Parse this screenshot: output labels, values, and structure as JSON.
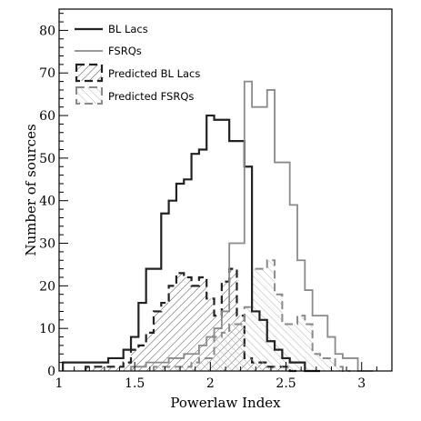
{
  "chart_data": {
    "type": "histogram",
    "title": "",
    "xlabel": "Powerlaw Index",
    "ylabel": "Number of sources",
    "xlim": [
      1.0,
      3.2
    ],
    "ylim": [
      0,
      85
    ],
    "x_ticks": [
      "1",
      "1.5",
      "2",
      "2.5",
      "3"
    ],
    "y_ticks": [
      "0",
      "10",
      "20",
      "30",
      "40",
      "50",
      "60",
      "70",
      "80"
    ],
    "bin_width": 0.05,
    "legend_position": "top-left",
    "series": [
      {
        "name": "BL Lacs",
        "style": "solid-dark",
        "color": "#222222",
        "bins": [
          [
            1.05,
            2
          ],
          [
            1.1,
            2
          ],
          [
            1.15,
            2
          ],
          [
            1.2,
            2
          ],
          [
            1.25,
            2
          ],
          [
            1.3,
            2
          ],
          [
            1.35,
            3
          ],
          [
            1.4,
            3
          ],
          [
            1.45,
            5
          ],
          [
            1.5,
            8
          ],
          [
            1.55,
            16
          ],
          [
            1.6,
            24
          ],
          [
            1.65,
            24
          ],
          [
            1.7,
            37
          ],
          [
            1.75,
            40
          ],
          [
            1.8,
            44
          ],
          [
            1.85,
            45
          ],
          [
            1.9,
            51
          ],
          [
            1.95,
            52
          ],
          [
            2.0,
            60
          ],
          [
            2.05,
            59
          ],
          [
            2.1,
            59
          ],
          [
            2.15,
            54
          ],
          [
            2.2,
            54
          ],
          [
            2.25,
            48
          ],
          [
            2.3,
            14
          ],
          [
            2.35,
            12
          ],
          [
            2.4,
            7
          ],
          [
            2.45,
            5
          ],
          [
            2.5,
            3
          ],
          [
            2.55,
            2
          ],
          [
            2.6,
            2
          ],
          [
            2.65,
            0
          ],
          [
            2.7,
            0
          ]
        ]
      },
      {
        "name": "FSRQs",
        "style": "solid-gray",
        "color": "#8a8a8a",
        "bins": [
          [
            1.5,
            1
          ],
          [
            1.55,
            1
          ],
          [
            1.6,
            2
          ],
          [
            1.65,
            2
          ],
          [
            1.7,
            2
          ],
          [
            1.75,
            3
          ],
          [
            1.8,
            3
          ],
          [
            1.85,
            4
          ],
          [
            1.9,
            4
          ],
          [
            1.95,
            6
          ],
          [
            2.0,
            8
          ],
          [
            2.05,
            10
          ],
          [
            2.1,
            14
          ],
          [
            2.15,
            30
          ],
          [
            2.2,
            30
          ],
          [
            2.25,
            68
          ],
          [
            2.3,
            62
          ],
          [
            2.35,
            62
          ],
          [
            2.4,
            66
          ],
          [
            2.45,
            49
          ],
          [
            2.5,
            49
          ],
          [
            2.55,
            39
          ],
          [
            2.6,
            26
          ],
          [
            2.65,
            19
          ],
          [
            2.7,
            13
          ],
          [
            2.75,
            13
          ],
          [
            2.8,
            8
          ],
          [
            2.85,
            4
          ],
          [
            2.9,
            3
          ],
          [
            2.95,
            3
          ],
          [
            3.0,
            0
          ],
          [
            3.05,
            0
          ]
        ]
      },
      {
        "name": "Predicted BL Lacs",
        "style": "dashed-dark-hatched",
        "color": "#222222",
        "bins": [
          [
            1.2,
            1
          ],
          [
            1.25,
            1
          ],
          [
            1.3,
            1
          ],
          [
            1.35,
            1
          ],
          [
            1.4,
            1
          ],
          [
            1.45,
            2
          ],
          [
            1.5,
            5
          ],
          [
            1.55,
            6
          ],
          [
            1.6,
            9
          ],
          [
            1.65,
            14
          ],
          [
            1.7,
            16
          ],
          [
            1.75,
            20
          ],
          [
            1.8,
            23
          ],
          [
            1.85,
            22
          ],
          [
            1.9,
            20
          ],
          [
            1.95,
            22
          ],
          [
            2.0,
            17
          ],
          [
            2.05,
            13
          ],
          [
            2.1,
            21
          ],
          [
            2.15,
            24
          ],
          [
            2.2,
            13
          ],
          [
            2.25,
            3
          ],
          [
            2.3,
            2
          ],
          [
            2.35,
            2
          ],
          [
            2.4,
            1
          ],
          [
            2.45,
            1
          ],
          [
            2.5,
            1
          ],
          [
            2.55,
            0
          ]
        ]
      },
      {
        "name": "Predicted FSRQs",
        "style": "dashed-gray-hatched",
        "color": "#8a8a8a",
        "bins": [
          [
            1.65,
            1
          ],
          [
            1.7,
            1
          ],
          [
            1.75,
            1
          ],
          [
            1.8,
            1
          ],
          [
            1.85,
            1
          ],
          [
            1.9,
            2
          ],
          [
            1.95,
            3
          ],
          [
            2.0,
            3
          ],
          [
            2.05,
            8
          ],
          [
            2.1,
            9
          ],
          [
            2.15,
            11
          ],
          [
            2.2,
            11
          ],
          [
            2.25,
            15
          ],
          [
            2.3,
            24
          ],
          [
            2.35,
            24
          ],
          [
            2.4,
            26
          ],
          [
            2.45,
            18
          ],
          [
            2.5,
            11
          ],
          [
            2.55,
            11
          ],
          [
            2.6,
            13
          ],
          [
            2.65,
            11
          ],
          [
            2.7,
            4
          ],
          [
            2.75,
            3
          ],
          [
            2.8,
            3
          ],
          [
            2.85,
            1
          ],
          [
            2.9,
            0
          ]
        ]
      }
    ]
  }
}
